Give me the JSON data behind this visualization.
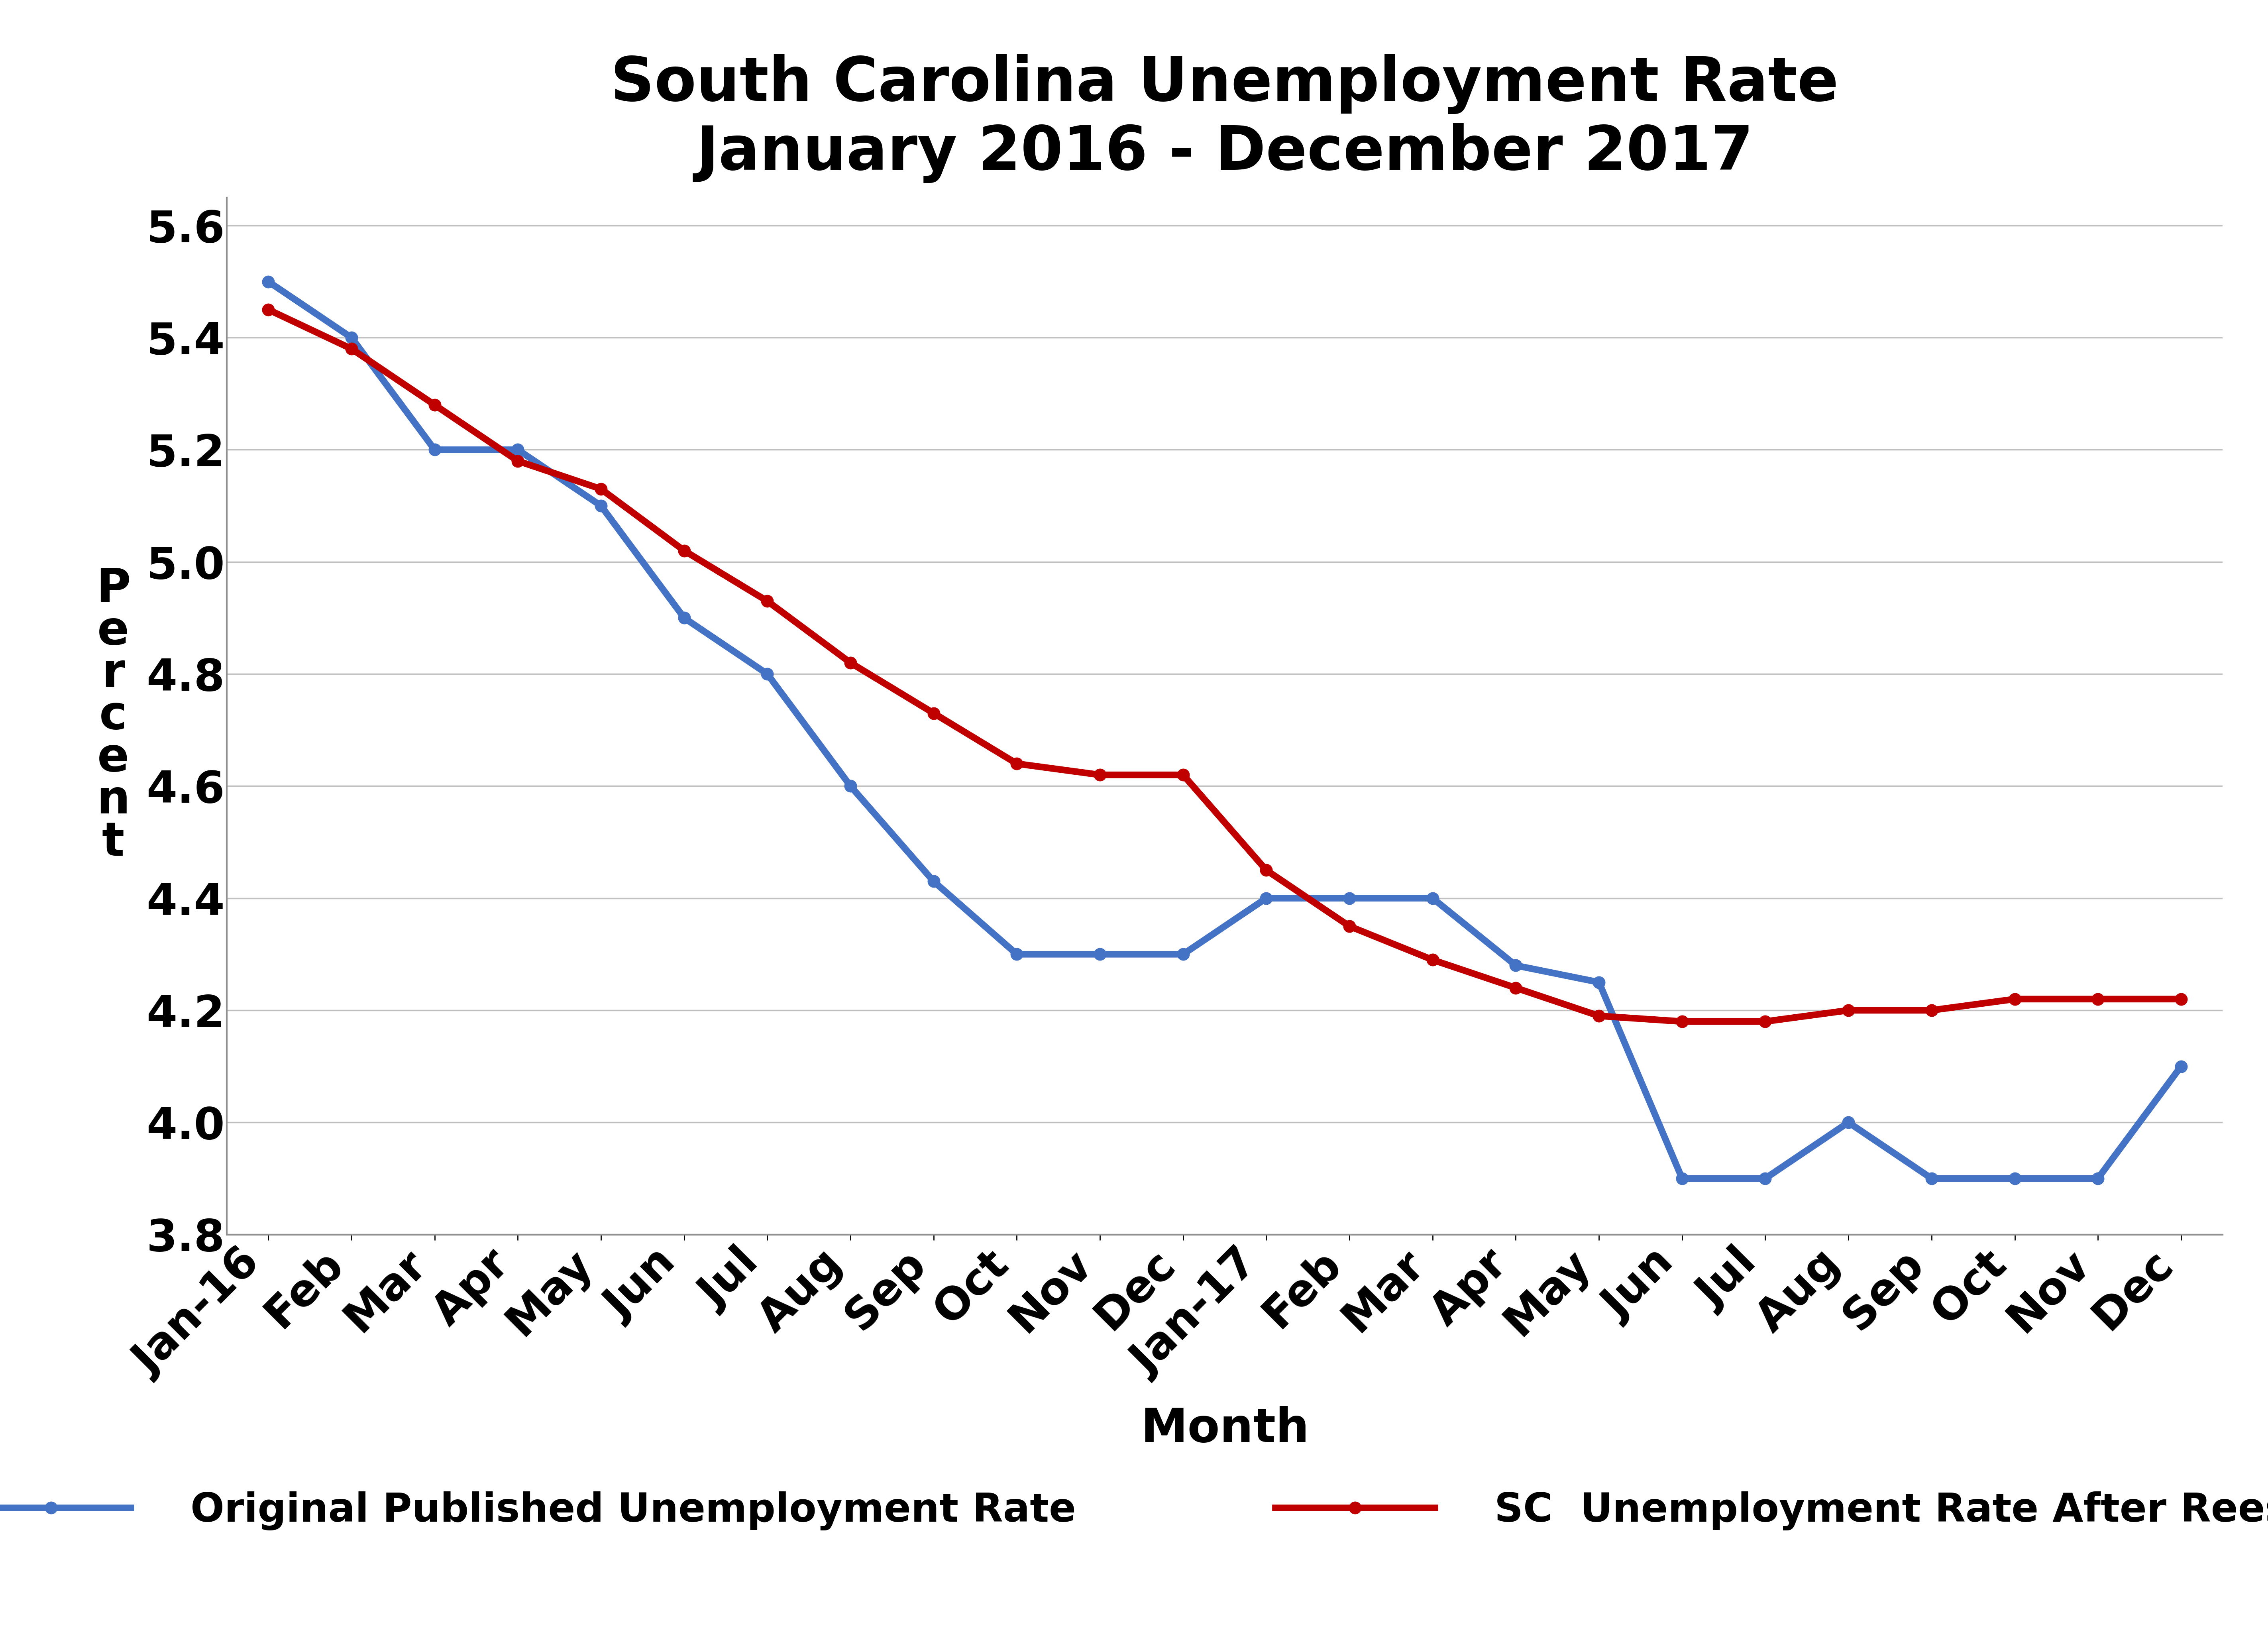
{
  "title_line1": "South Carolina Unemployment Rate",
  "title_line2": "January 2016 - December 2017",
  "xlabel": "Month",
  "ylabel": "P\ne\nr\nc\ne\nn\nt",
  "x_labels": [
    "Jan-16",
    "Feb",
    "Mar",
    "Apr",
    "May",
    "Jun",
    "Jul",
    "Aug",
    "Sep",
    "Oct",
    "Nov",
    "Dec",
    "Jan-17",
    "Feb",
    "Mar",
    "Apr",
    "May",
    "Jun",
    "Jul",
    "Aug",
    "Sep",
    "Oct",
    "Nov",
    "Dec"
  ],
  "blue_values": [
    5.5,
    5.4,
    5.2,
    5.2,
    5.1,
    4.9,
    4.8,
    4.6,
    4.43,
    4.3,
    4.3,
    4.3,
    4.4,
    4.4,
    4.4,
    4.28,
    4.25,
    3.9,
    3.9,
    4.0,
    3.9,
    3.9,
    3.9,
    4.1
  ],
  "red_values": [
    5.45,
    5.38,
    5.28,
    5.18,
    5.13,
    5.02,
    4.93,
    4.82,
    4.73,
    4.64,
    4.62,
    4.62,
    4.45,
    4.35,
    4.29,
    4.24,
    4.19,
    4.18,
    4.18,
    4.2,
    4.2,
    4.22,
    4.22,
    4.22
  ],
  "ylim": [
    3.8,
    5.65
  ],
  "yticks": [
    3.8,
    4.0,
    4.2,
    4.4,
    4.6,
    4.8,
    5.0,
    5.2,
    5.4,
    5.6
  ],
  "blue_color": "#4472C4",
  "red_color": "#C00000",
  "title_fontsize": 110,
  "axis_label_fontsize": 85,
  "tick_fontsize": 80,
  "legend_fontsize": 72,
  "line_width": 12,
  "marker_size": 22
}
